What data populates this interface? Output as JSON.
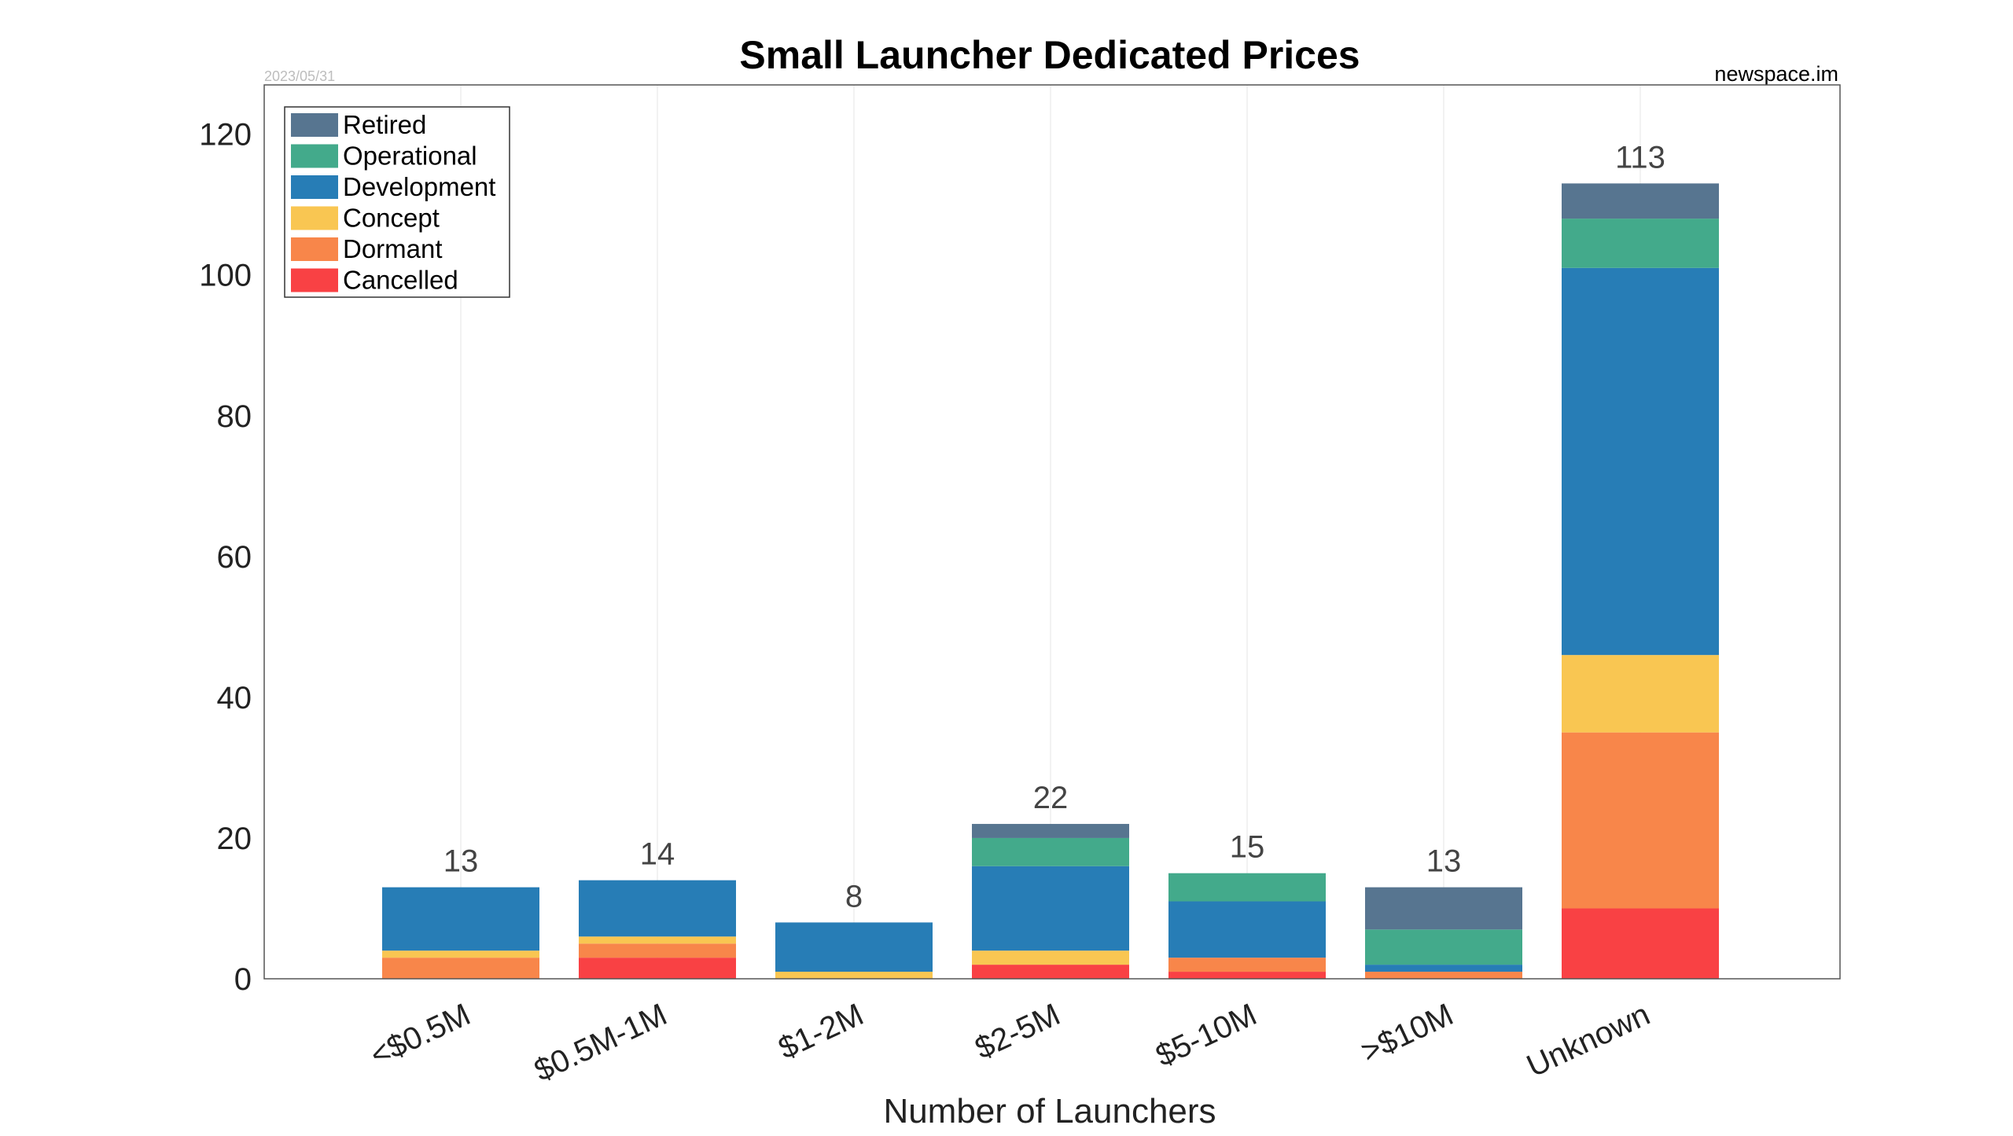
{
  "chart_data": {
    "type": "bar",
    "stacked": true,
    "title": "Small Launcher Dedicated Prices",
    "source_label": "newspace.im",
    "date_label": "2023/05/31",
    "xlabel": "Number of Launchers",
    "ylabel": "",
    "ylim": [
      0,
      127
    ],
    "yticks": [
      0,
      20,
      40,
      60,
      80,
      100,
      120
    ],
    "grid": "vertical, faint",
    "legend_placement": "top-left",
    "categories": [
      "<$0.5M",
      "$0.5M-1M",
      "$1-2M",
      "$2-5M",
      "$5-10M",
      ">$10M",
      "Unknown"
    ],
    "series": [
      {
        "name": "Cancelled",
        "color": "#f94144",
        "values": [
          0,
          3,
          0,
          2,
          1,
          0,
          10
        ]
      },
      {
        "name": "Dormant",
        "color": "#f8864a",
        "values": [
          3,
          2,
          0,
          0,
          2,
          1,
          25
        ]
      },
      {
        "name": "Concept",
        "color": "#f9c652",
        "values": [
          1,
          1,
          1,
          2,
          0,
          0,
          11
        ]
      },
      {
        "name": "Development",
        "color": "#277db6",
        "values": [
          9,
          8,
          7,
          12,
          8,
          1,
          55
        ]
      },
      {
        "name": "Operational",
        "color": "#43aa8b",
        "values": [
          0,
          0,
          0,
          4,
          4,
          5,
          7
        ]
      },
      {
        "name": "Retired",
        "color": "#577590",
        "values": [
          0,
          0,
          0,
          2,
          0,
          6,
          5
        ]
      }
    ],
    "totals": [
      "13",
      "14",
      "8",
      "22",
      "15",
      "13",
      "113"
    ],
    "legend_order": [
      "Retired",
      "Operational",
      "Development",
      "Concept",
      "Dormant",
      "Cancelled"
    ]
  }
}
